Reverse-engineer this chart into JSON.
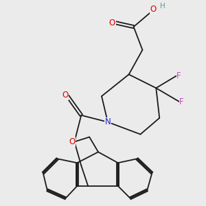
{
  "background_color": "#ebebeb",
  "figsize": [
    3.0,
    3.0
  ],
  "dpi": 100,
  "atom_colors": {
    "C": "#000000",
    "H": "#5a9a9a",
    "O": "#dd0000",
    "N": "#2222cc",
    "F": "#cc44cc"
  },
  "bond_color": "#1a1a1a",
  "bond_width": 1.3,
  "font_size_atom": 8.5,
  "font_size_H": 7.5
}
